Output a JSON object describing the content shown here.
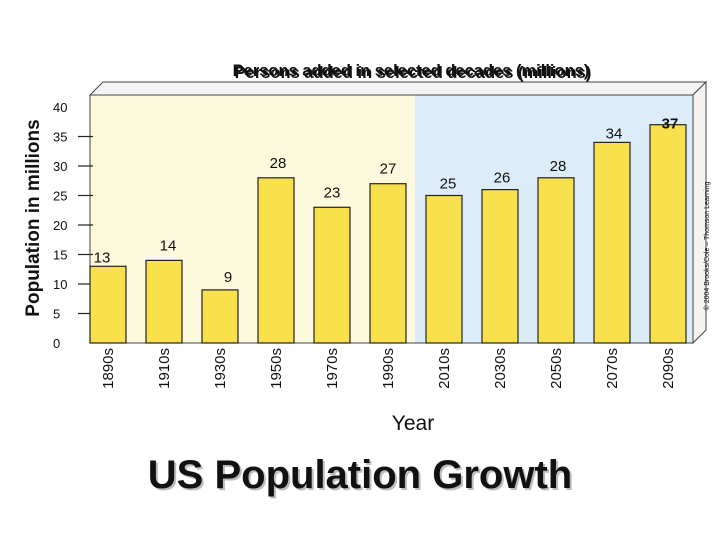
{
  "chart_data": {
    "type": "bar",
    "title": "Persons added in selected decades (millions)",
    "xlabel": "Year",
    "ylabel": "Population in millions",
    "ylim": [
      0,
      40
    ],
    "yticks": [
      0,
      5,
      10,
      15,
      20,
      25,
      30,
      35,
      40
    ],
    "grid": false,
    "categories": [
      "1890s",
      "1910s",
      "1930s",
      "1950s",
      "1970s",
      "1990s",
      "2010s",
      "2030s",
      "2050s",
      "2070s",
      "2090s"
    ],
    "values": [
      13,
      14,
      9,
      28,
      23,
      27,
      25,
      26,
      28,
      34,
      37
    ],
    "bar_color": "#f7e04b",
    "history_region_color": "#fdf9dc",
    "projection_region_color": "#dcecf8",
    "copyright": "© 2004 Brooks/Cole – Thomson Learning"
  },
  "slide_title": "US Population Growth"
}
